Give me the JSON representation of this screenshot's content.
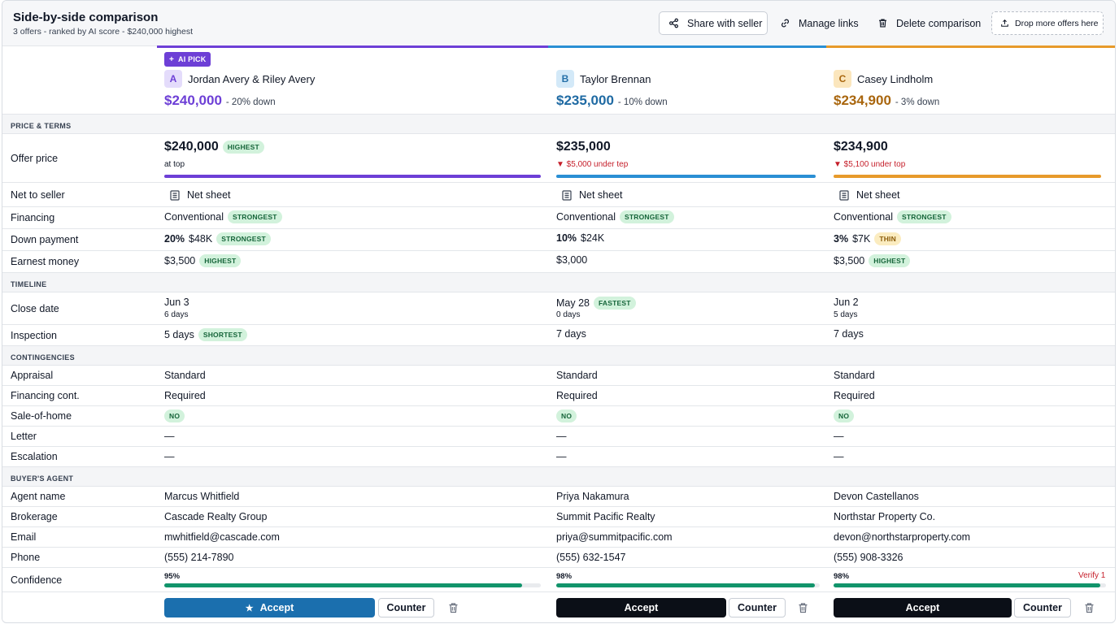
{
  "header": {
    "title": "Side-by-side comparison",
    "subtitle": "3 offers - ranked by AI score - $240,000 highest",
    "share_label": "Share with seller",
    "manage_label": "Manage links",
    "delete_label": "Delete comparison",
    "drop_label": "Drop more offers here"
  },
  "ai_pick_label": "AI PICK",
  "offers": [
    {
      "letter": "A",
      "name": "Jordan Avery & Riley Avery",
      "price": "$240,000",
      "down": "- 20% down",
      "color": "#6d3fd6"
    },
    {
      "letter": "B",
      "name": "Taylor Brennan",
      "price": "$235,000",
      "down": "- 10% down",
      "color": "#2a8fd4"
    },
    {
      "letter": "C",
      "name": "Casey Lindholm",
      "price": "$234,900",
      "down": "- 3% down",
      "color": "#e79a2b"
    }
  ],
  "sections": {
    "price_terms": "PRICE & TERMS",
    "timeline": "TIMELINE",
    "contingencies": "CONTINGENCIES",
    "buyers_agent": "BUYER'S AGENT"
  },
  "labels": {
    "offer_price": "Offer price",
    "net_to_seller": "Net to seller",
    "financing": "Financing",
    "down_payment": "Down payment",
    "earnest_money": "Earnest money",
    "close_date": "Close date",
    "inspection": "Inspection",
    "appraisal": "Appraisal",
    "financing_cont": "Financing cont.",
    "sale_of_home": "Sale-of-home",
    "letter": "Letter",
    "escalation": "Escalation",
    "agent_name": "Agent name",
    "brokerage": "Brokerage",
    "email": "Email",
    "phone": "Phone",
    "confidence": "Confidence"
  },
  "cols": [
    {
      "offer_price": "$240,000",
      "offer_badge": "HIGHEST",
      "offer_note": "at top",
      "price_fraction": 1.0,
      "net_sheet": "Net sheet",
      "financing": "Conventional",
      "financing_badge": "STRONGEST",
      "down_pct": "20%",
      "down_amt": "$48K",
      "down_badge": "STRONGEST",
      "earnest": "$3,500",
      "earnest_badge": "HIGHEST",
      "close_date": "Jun 3",
      "close_days": "6 days",
      "close_badge": "",
      "inspection": "5 days",
      "inspection_badge": "SHORTEST",
      "appraisal": "Standard",
      "financing_cont": "Required",
      "sale_of_home": "NO",
      "letter": "—",
      "escalation": "—",
      "agent_name": "Marcus Whitfield",
      "brokerage": "Cascade Realty Group",
      "email": "mwhitfield@cascade.com",
      "phone": "(555) 214-7890",
      "confidence": "95%",
      "confidence_value": 0.95,
      "verify": "",
      "accept": "Accept",
      "counter": "Counter"
    },
    {
      "offer_price": "$235,000",
      "offer_badge": "",
      "offer_note": "▼ $5,000 under tep",
      "price_fraction": 0.98,
      "net_sheet": "Net sheet",
      "financing": "Conventional",
      "financing_badge": "STRONGEST",
      "down_pct": "10%",
      "down_amt": "$24K",
      "down_badge": "",
      "earnest": "$3,000",
      "earnest_badge": "",
      "close_date": "May 28",
      "close_days": "0 days",
      "close_badge": "FASTEST",
      "inspection": "7 days",
      "inspection_badge": "",
      "appraisal": "Standard",
      "financing_cont": "Required",
      "sale_of_home": "NO",
      "letter": "—",
      "escalation": "—",
      "agent_name": "Priya Nakamura",
      "brokerage": "Summit Pacific Realty",
      "email": "priya@summitpacific.com",
      "phone": "(555) 632-1547",
      "confidence": "98%",
      "confidence_value": 0.98,
      "verify": "",
      "accept": "Accept",
      "counter": "Counter"
    },
    {
      "offer_price": "$234,900",
      "offer_badge": "",
      "offer_note": "▼ $5,100 under top",
      "price_fraction": 0.98,
      "net_sheet": "Net sheet",
      "financing": "Conventional",
      "financing_badge": "STRONGEST",
      "down_pct": "3%",
      "down_amt": "$7K",
      "down_badge": "THIN",
      "earnest": "$3,500",
      "earnest_badge": "HIGHEST",
      "close_date": "Jun 2",
      "close_days": "5 days",
      "close_badge": "",
      "inspection": "7 days",
      "inspection_badge": "",
      "appraisal": "Standard",
      "financing_cont": "Required",
      "sale_of_home": "NO",
      "letter": "—",
      "escalation": "—",
      "agent_name": "Devon Castellanos",
      "brokerage": "Northstar Property Co.",
      "email": "devon@northstarproperty.com",
      "phone": "(555) 908-3326",
      "confidence": "98%",
      "confidence_value": 0.98,
      "verify": "Verify 1",
      "accept": "Accept",
      "counter": "Counter"
    }
  ]
}
